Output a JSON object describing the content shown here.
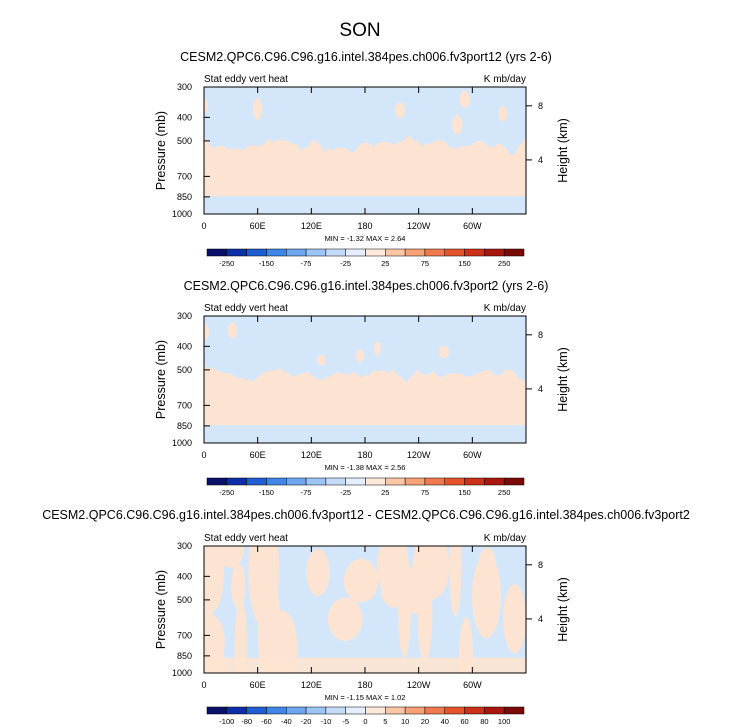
{
  "page": {
    "title": "SON"
  },
  "colors": {
    "background": "#ffffff",
    "neg_light": "#d4e6f9",
    "pos_light": "#fde4d2"
  },
  "chart_data": [
    {
      "type": "heatmap",
      "title": "CESM2.QPC6.C96.C96.g16.intel.384pes.ch006.fv3port12 (yrs 2-6)",
      "left_label": "Stat eddy vert heat",
      "right_label": "K mb/day",
      "xlabel": "",
      "ylabel": "Pressure (mb)",
      "y2label": "Height (km)",
      "x_ticks": [
        "0",
        "60E",
        "120E",
        "180",
        "120W",
        "60W"
      ],
      "y_ticks": [
        "300",
        "400",
        "500",
        "700",
        "850",
        "1000"
      ],
      "y2_ticks": [
        "8",
        "4"
      ],
      "stats": "MIN = -1.32   MAX = 2.64",
      "colorbar_labels": [
        "-250",
        "-150",
        "-75",
        "-25",
        "25",
        "75",
        "150",
        "250"
      ],
      "colorbar_colors": [
        "#08106b",
        "#0c2fa8",
        "#1f5ed0",
        "#3f86e8",
        "#6ea6f0",
        "#9cc4f5",
        "#c5dcf9",
        "#e4eefc",
        "#fde8da",
        "#fac6a6",
        "#f6a176",
        "#f07a4c",
        "#e4532b",
        "#cc3018",
        "#a8170e",
        "#7a0a06"
      ],
      "pattern": "layers",
      "ylim_pressure": [
        300,
        1000
      ]
    },
    {
      "type": "heatmap",
      "title": "CESM2.QPC6.C96.C96.g16.intel.384pes.ch006.fv3port2 (yrs 2-6)",
      "left_label": "Stat eddy vert heat",
      "right_label": "K mb/day",
      "xlabel": "",
      "ylabel": "Pressure (mb)",
      "y2label": "Height (km)",
      "x_ticks": [
        "0",
        "60E",
        "120E",
        "180",
        "120W",
        "60W"
      ],
      "y_ticks": [
        "300",
        "400",
        "500",
        "700",
        "850",
        "1000"
      ],
      "y2_ticks": [
        "8",
        "4"
      ],
      "stats": "MIN = -1.38   MAX = 2.56",
      "colorbar_labels": [
        "-250",
        "-150",
        "-75",
        "-25",
        "25",
        "75",
        "150",
        "250"
      ],
      "colorbar_colors": [
        "#08106b",
        "#0c2fa8",
        "#1f5ed0",
        "#3f86e8",
        "#6ea6f0",
        "#9cc4f5",
        "#c5dcf9",
        "#e4eefc",
        "#fde8da",
        "#fac6a6",
        "#f6a176",
        "#f07a4c",
        "#e4532b",
        "#cc3018",
        "#a8170e",
        "#7a0a06"
      ],
      "pattern": "layers",
      "ylim_pressure": [
        300,
        1000
      ]
    },
    {
      "type": "heatmap",
      "title": "CESM2.QPC6.C96.C96.g16.intel.384pes.ch006.fv3port12 - CESM2.QPC6.C96.C96.g16.intel.384pes.ch006.fv3port2",
      "left_label": "Stat eddy vert heat",
      "right_label": "K mb/day",
      "xlabel": "",
      "ylabel": "Pressure (mb)",
      "y2label": "Height (km)",
      "x_ticks": [
        "0",
        "60E",
        "120E",
        "180",
        "120W",
        "60W"
      ],
      "y_ticks": [
        "300",
        "400",
        "500",
        "700",
        "850",
        "1000"
      ],
      "y2_ticks": [
        "8",
        "4"
      ],
      "stats": "MIN = -1.15   MAX = 1.02",
      "colorbar_labels": [
        "-100",
        "-80",
        "-60",
        "-40",
        "-20",
        "-10",
        "-5",
        "0",
        "5",
        "10",
        "20",
        "40",
        "60",
        "80",
        "100"
      ],
      "colorbar_colors": [
        "#08106b",
        "#0c2fa8",
        "#1f5ed0",
        "#3f86e8",
        "#6ea6f0",
        "#9cc4f5",
        "#c5dcf9",
        "#e4eefc",
        "#fde8da",
        "#fac6a6",
        "#f6a176",
        "#f07a4c",
        "#e4532b",
        "#cc3018",
        "#a8170e",
        "#7a0a06"
      ],
      "pattern": "mottled",
      "ylim_pressure": [
        300,
        1000
      ]
    }
  ]
}
